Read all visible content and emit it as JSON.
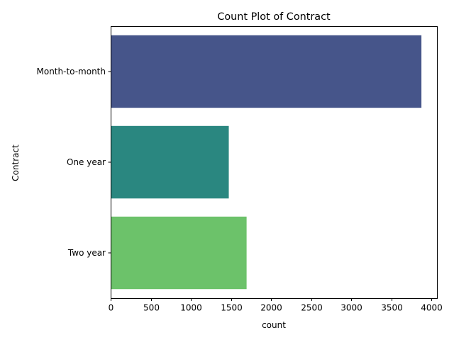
{
  "chart_data": {
    "type": "bar",
    "orientation": "horizontal",
    "title": "Count Plot of Contract",
    "xlabel": "count",
    "ylabel": "Contract",
    "categories": [
      "Month-to-month",
      "One year",
      "Two year"
    ],
    "values": [
      3875,
      1473,
      1695
    ],
    "colors": [
      "#46558a",
      "#2a8780",
      "#6cc26a"
    ],
    "xlim": [
      0,
      4069
    ],
    "xticks": [
      0,
      500,
      1000,
      1500,
      2000,
      2500,
      3000,
      3500,
      4000
    ],
    "grid": false,
    "legend": "none"
  }
}
